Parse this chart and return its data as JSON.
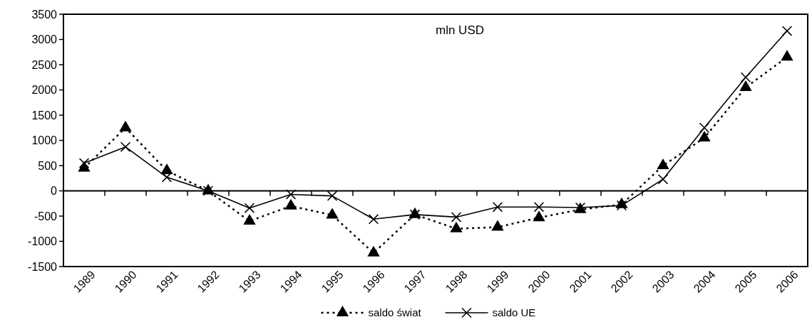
{
  "chart_data": {
    "type": "line",
    "categories": [
      "1989",
      "1990",
      "1991",
      "1992",
      "1993",
      "1994",
      "1995",
      "1996",
      "1997",
      "1998",
      "1999",
      "2000",
      "2001",
      "2002",
      "2003",
      "2004",
      "2005",
      "2006"
    ],
    "series": [
      {
        "name": "saldo świat",
        "color": "#000000",
        "marker": "triangle",
        "line_style": "dotted",
        "values": [
          450,
          1250,
          400,
          0,
          -600,
          -300,
          -480,
          -1230,
          -470,
          -750,
          -720,
          -530,
          -370,
          -270,
          500,
          1050,
          2050,
          2650
        ]
      },
      {
        "name": "saldo UE",
        "color": "#000000",
        "marker": "cross",
        "line_style": "solid",
        "values": [
          550,
          870,
          270,
          0,
          -340,
          -70,
          -100,
          -560,
          -470,
          -520,
          -320,
          -320,
          -330,
          -290,
          230,
          1250,
          2250,
          3170
        ]
      }
    ],
    "ylim": [
      -1500,
      3500
    ],
    "yticks": [
      -1500,
      -1000,
      -500,
      0,
      500,
      1000,
      1500,
      2000,
      2500,
      3000,
      3500
    ],
    "legend": "bottom",
    "annotations": [
      "mln USD"
    ]
  }
}
